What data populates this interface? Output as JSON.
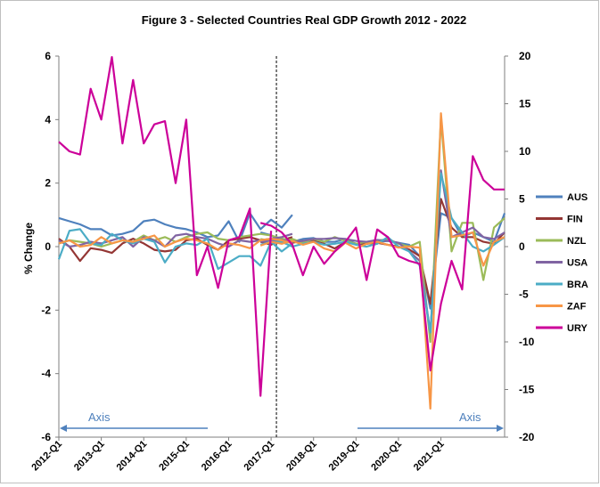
{
  "chart_data": {
    "type": "line",
    "title": "Figure 3 - Selected Countries Real GDP Growth 2012 - 2022",
    "ylabel_left": "% Change",
    "left_axis": {
      "ticks": [
        6,
        4,
        2,
        0,
        -2,
        -4,
        -6
      ],
      "ylim": [
        -6,
        6
      ]
    },
    "right_axis": {
      "ticks": [
        20,
        15,
        10,
        5,
        0,
        -5,
        -10,
        -15,
        -20
      ],
      "ylim": [
        -20,
        20
      ]
    },
    "x_tick_labels": [
      "2012-Q1",
      "2013-Q1",
      "2014-Q1",
      "2015-Q1",
      "2016-Q1",
      "2017-Q1",
      "2018-Q1",
      "2019-Q1",
      "2020-Q1",
      "2021-Q1"
    ],
    "x_start_index": 0,
    "x_end_index": 42,
    "divider_index": 20.5,
    "axis_left_label": "Axis",
    "axis_right_label": "Axis",
    "legend_position": "right",
    "grid": false,
    "series": [
      {
        "name": "AUS",
        "color": "#4F81BD",
        "left": [
          0.9,
          0.8,
          0.7,
          0.55,
          0.55,
          0.35,
          0.4,
          0.5,
          0.8,
          0.85,
          0.7,
          0.6,
          0.55,
          0.45,
          0.3,
          0.35,
          0.8,
          0.15,
          1.05,
          0.55,
          0.85,
          0.6,
          1.0
        ],
        "right": [
          1.5,
          1.2,
          0.5,
          0.5,
          0.8,
          0.9,
          0.5,
          0.5,
          0.8,
          0.3,
          0.3,
          0.5,
          0.6,
          0.4,
          0.2,
          -1.0,
          -6.5,
          3.5,
          3.0,
          1.0,
          1.5,
          1.0,
          0.5,
          3.5
        ]
      },
      {
        "name": "FIN",
        "color": "#943634",
        "left": [
          0.25,
          0.0,
          -0.45,
          -0.05,
          -0.1,
          -0.2,
          0.1,
          0.25,
          0.1,
          -0.1,
          -0.15,
          -0.1,
          0.2,
          0.25,
          0.05,
          -0.1,
          0.2,
          0.25,
          0.3,
          0.2,
          0.1,
          0.2,
          0.3
        ],
        "right": [
          0.5,
          0.2,
          0.8,
          0.4,
          0.6,
          0.6,
          0.3,
          -0.2,
          0.5,
          0.3,
          0.3,
          0.4,
          0.2,
          0.0,
          -0.3,
          -1.0,
          -6.0,
          5.0,
          2.0,
          1.0,
          1.0,
          0.5,
          0.3,
          1.5
        ]
      },
      {
        "name": "NZL",
        "color": "#9BBB59",
        "left": [
          0.1,
          0.2,
          0.15,
          0.1,
          0.0,
          0.1,
          0.2,
          0.15,
          0.35,
          0.2,
          0.3,
          0.15,
          0.3,
          0.4,
          0.45,
          0.25,
          0.2,
          0.3,
          0.35,
          0.4,
          0.35,
          0.25,
          0.2
        ],
        "right": [
          0.8,
          0.6,
          0.5,
          0.8,
          0.4,
          0.8,
          0.5,
          1.0,
          0.6,
          0.3,
          0.5,
          0.6,
          0.8,
          0.3,
          0.0,
          0.5,
          -10.0,
          13.5,
          -0.5,
          2.5,
          2.5,
          -3.5,
          2.0,
          3.0
        ]
      },
      {
        "name": "USA",
        "color": "#8064A2",
        "left": [
          0.2,
          0.0,
          0.05,
          0.15,
          0.1,
          0.2,
          0.3,
          0.0,
          0.3,
          0.2,
          0.0,
          0.35,
          0.4,
          0.3,
          0.25,
          0.1,
          0.0,
          0.2,
          0.15,
          0.2,
          0.25,
          0.3,
          0.4
        ],
        "right": [
          0.5,
          0.6,
          0.7,
          0.5,
          0.6,
          0.8,
          0.8,
          0.9,
          0.8,
          0.6,
          0.5,
          0.7,
          0.6,
          0.4,
          -0.5,
          -1.5,
          -9.0,
          8.0,
          1.0,
          1.5,
          2.0,
          1.0,
          0.8,
          1.5
        ]
      },
      {
        "name": "BRA",
        "color": "#4BACC6",
        "left": [
          -0.4,
          0.5,
          0.55,
          0.1,
          0.05,
          0.4,
          0.2,
          0.1,
          0.25,
          0.15,
          -0.5,
          0.0,
          0.1,
          0.05,
          0.25,
          -0.7,
          -0.5,
          -0.3,
          -0.3,
          -0.6,
          0.15,
          -0.15,
          0.1
        ],
        "right": [
          0.2,
          0.5,
          0.5,
          0.0,
          0.3,
          0.5,
          0.2,
          0.3,
          0.5,
          0.2,
          0.0,
          0.3,
          1.0,
          0.0,
          -0.5,
          -2.0,
          -9.0,
          7.7,
          3.0,
          1.5,
          0.0,
          -0.5,
          0.2,
          1.0
        ]
      },
      {
        "name": "ZAF",
        "color": "#F79646",
        "left": [
          0.1,
          0.2,
          0.0,
          0.05,
          0.3,
          0.1,
          0.2,
          0.15,
          0.25,
          0.35,
          0.0,
          0.15,
          0.25,
          0.2,
          0.1,
          -0.1,
          0.1,
          0.05,
          -0.05,
          0.2,
          0.25,
          0.2,
          0.1
        ],
        "right": [
          0.1,
          0.5,
          0.3,
          0.6,
          0.2,
          0.5,
          -0.2,
          -0.5,
          0.4,
          -0.2,
          0.3,
          0.5,
          0.2,
          -0.1,
          0.0,
          -0.1,
          -17.0,
          14.0,
          1.0,
          1.2,
          1.5,
          -2.0,
          0.5,
          1.0
        ]
      },
      {
        "name": "URY",
        "color": "#CC0099",
        "left": [
          3.3,
          3.0,
          2.9,
          4.97,
          4.0,
          5.97,
          3.25,
          5.25,
          3.25,
          3.85,
          3.95,
          2.0,
          4.0,
          -0.9,
          0.0,
          -1.3,
          0.2,
          0.3,
          1.2,
          -4.7,
          0.5
        ],
        "right": [
          2.5,
          2.2,
          1.5,
          0.2,
          -3.0,
          0.0,
          -1.8,
          -0.5,
          0.5,
          2.0,
          -3.5,
          1.8,
          1.0,
          -1.0,
          -1.5,
          -1.8,
          -13.0,
          -6.0,
          -1.5,
          -4.5,
          9.5,
          7.0,
          6.0,
          6.0
        ]
      }
    ]
  }
}
